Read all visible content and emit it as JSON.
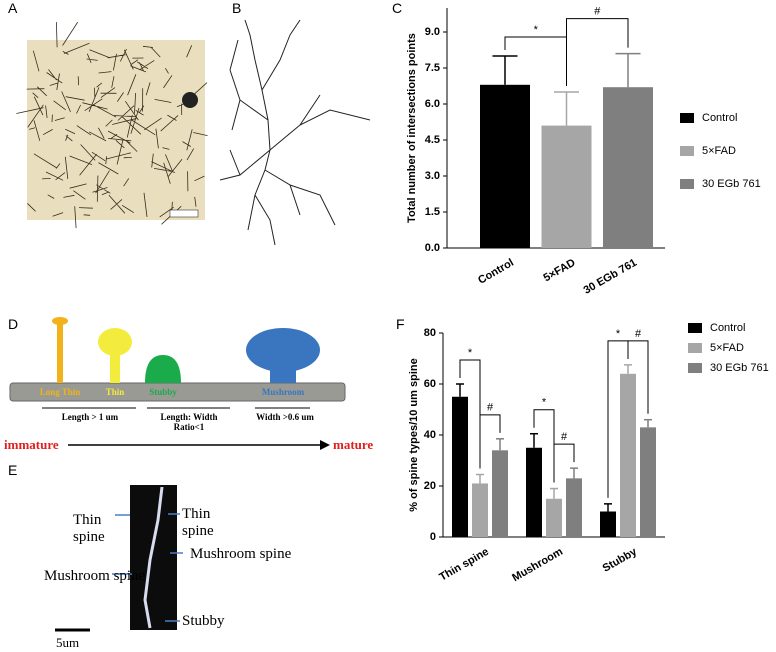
{
  "panel_labels": [
    "A",
    "B",
    "C",
    "D",
    "E",
    "F"
  ],
  "diagram_d": {
    "spines": [
      "Long Thin",
      "Thin",
      "Stubby",
      "Mushroom"
    ],
    "criteria": [
      "Length > 1 um",
      "Length: Width Ratio<1",
      "Width >0.6 um"
    ],
    "start": "immature",
    "end": "mature"
  },
  "image_e": {
    "labels": [
      "Thin spine",
      "Thin spine",
      "Mushroom spine",
      "Mushroom spine",
      "Stubby"
    ],
    "scale": "5um"
  },
  "chart_data": [
    {
      "type": "bar",
      "y_label": "Total number of intersections points",
      "categories": [
        "Control",
        "5×FAD",
        "30 EGb 761"
      ],
      "values": [
        6.8,
        5.1,
        6.7
      ],
      "errors": [
        1.2,
        1.4,
        1.4
      ],
      "colors": [
        "#000000",
        "#a6a6a6",
        "#7f7f7f"
      ],
      "ylim": [
        0,
        10
      ],
      "yticks": [
        {
          "value": 0,
          "label": "0.0"
        },
        1.5,
        {
          "value": 3,
          "label": "3.0"
        },
        4.5,
        {
          "value": 6,
          "label": "6.0"
        },
        7.5,
        {
          "value": 9,
          "label": "9.0"
        }
      ],
      "annotations": [
        "*",
        "#"
      ]
    },
    {
      "type": "bar",
      "y_label": "% of spine types/10 um spine",
      "categories": [
        "Thin spine",
        "Mushroom",
        "Stubby"
      ],
      "series": [
        {
          "name": "Control",
          "color": "#000000",
          "values": [
            55,
            35,
            10
          ],
          "errors": [
            5,
            5.5,
            3
          ]
        },
        {
          "name": "5×FAD",
          "color": "#a6a6a6",
          "values": [
            21,
            15,
            64
          ],
          "errors": [
            3.5,
            4,
            3.5
          ]
        },
        {
          "name": "30 EGb 761",
          "color": "#7f7f7f",
          "values": [
            34,
            23,
            43
          ],
          "errors": [
            4.5,
            4,
            3
          ]
        }
      ],
      "ylim": [
        0,
        80
      ],
      "yticks": [
        0,
        20,
        40,
        60,
        80
      ],
      "annotations": [
        "*",
        "#",
        "*",
        "#",
        "*",
        "#"
      ]
    }
  ]
}
